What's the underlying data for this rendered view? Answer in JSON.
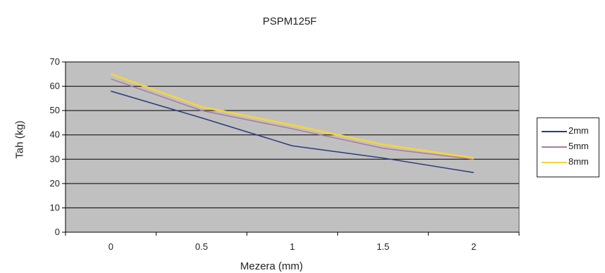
{
  "chart_data": {
    "type": "line",
    "title": "PSPM125F",
    "xlabel": "Mezera (mm)",
    "ylabel": "Tah (kg)",
    "x": [
      0,
      0.5,
      1,
      1.5,
      2
    ],
    "x_ticks": [
      "0",
      "0.5",
      "1",
      "1.5",
      "2"
    ],
    "y_ticks": [
      "0",
      "10",
      "20",
      "30",
      "40",
      "50",
      "60",
      "70"
    ],
    "ylim": [
      0,
      70
    ],
    "grid": true,
    "legend_position": "right",
    "plot_background": "#c0c0c0",
    "series": [
      {
        "name": "2mm",
        "color": "#2b3a7a",
        "values": [
          58,
          47,
          35.5,
          30.5,
          24.5
        ]
      },
      {
        "name": "5mm",
        "color": "#a77aa8",
        "values": [
          63,
          50,
          42.5,
          34.5,
          30
        ]
      },
      {
        "name": "8mm",
        "color": "#f2d24a",
        "values": [
          65,
          51.5,
          44,
          36,
          30.5
        ]
      }
    ]
  }
}
